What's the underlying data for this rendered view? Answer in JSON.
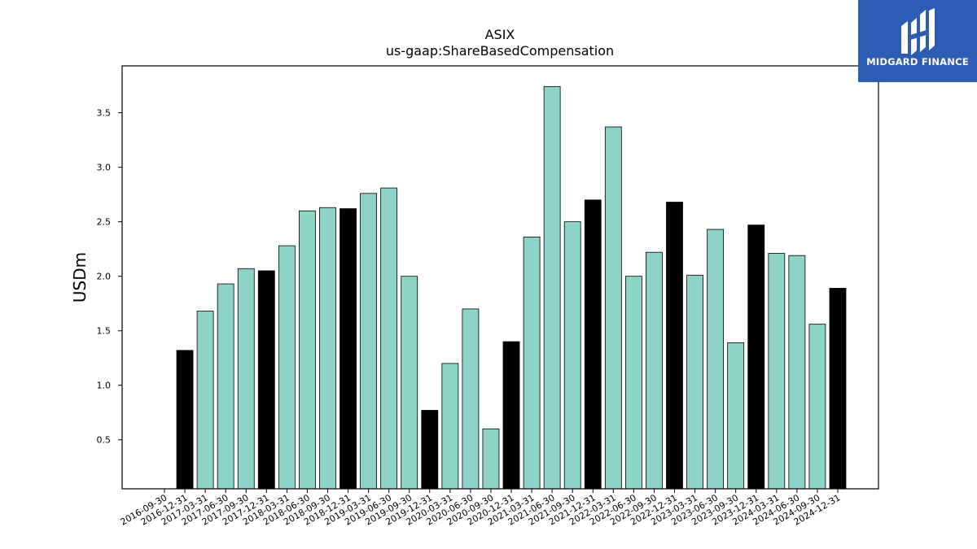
{
  "logo": {
    "text": "MIDGARD FINANCE"
  },
  "chart_data": {
    "type": "bar",
    "title": "ASIX",
    "subtitle": "us-gaap:ShareBasedCompensation",
    "xlabel": "",
    "ylabel": "USDm",
    "ylim": [
      0.05,
      3.93
    ],
    "yticks": [
      0.5,
      1.0,
      1.5,
      2.0,
      2.5,
      3.0,
      3.5
    ],
    "grid": false,
    "colors": {
      "quarter": "#8dd3c7",
      "year_end": "#000000",
      "edge": "#000000"
    },
    "categories": [
      "2016-09-30",
      "2016-12-31",
      "2017-03-31",
      "2017-06-30",
      "2017-09-30",
      "2017-12-31",
      "2018-03-31",
      "2018-06-30",
      "2018-09-30",
      "2018-12-31",
      "2019-03-31",
      "2019-06-30",
      "2019-09-30",
      "2019-12-31",
      "2020-03-31",
      "2020-06-30",
      "2020-09-30",
      "2020-12-31",
      "2021-03-31",
      "2021-06-30",
      "2021-09-30",
      "2021-12-31",
      "2022-03-31",
      "2022-06-30",
      "2022-09-30",
      "2022-12-31",
      "2023-03-31",
      "2023-06-30",
      "2023-09-30",
      "2023-12-31",
      "2024-03-31",
      "2024-06-30",
      "2024-09-30",
      "2024-12-31"
    ],
    "values": [
      null,
      1.32,
      1.68,
      1.93,
      2.07,
      2.05,
      2.28,
      2.6,
      2.63,
      2.62,
      2.76,
      2.81,
      2.0,
      0.77,
      1.2,
      1.7,
      0.6,
      1.4,
      2.36,
      3.74,
      2.5,
      2.7,
      3.37,
      2.0,
      2.22,
      2.68,
      2.01,
      2.43,
      1.39,
      2.47,
      2.21,
      2.19,
      1.56,
      1.89
    ]
  }
}
